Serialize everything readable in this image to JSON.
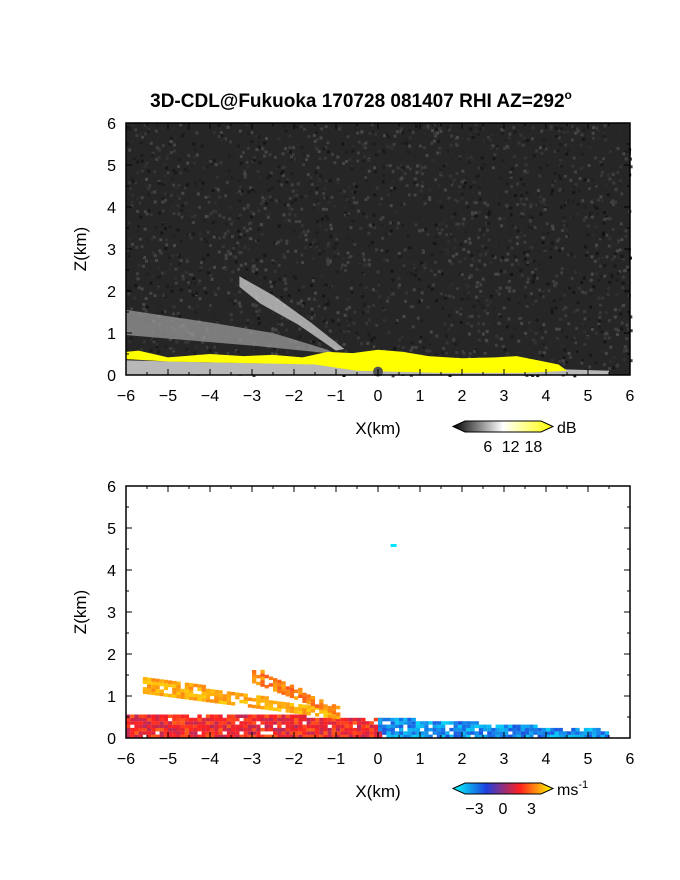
{
  "title": "3D-CDL@Fukuoka 170728 081407 RHI AZ=292",
  "title_superscript": "o",
  "chart_data": [
    {
      "type": "heatmap",
      "panel": "snr",
      "xlabel": "X(km)",
      "ylabel": "Z(km)",
      "xlim": [
        -6,
        6
      ],
      "ylim": [
        0,
        6
      ],
      "xticks": [
        "-6",
        "-5",
        "-4",
        "-3",
        "-2",
        "-1",
        "0",
        "1",
        "2",
        "3",
        "4",
        "5",
        "6"
      ],
      "yticks": [
        "0",
        "1",
        "2",
        "3",
        "4",
        "5",
        "6"
      ],
      "background": "noise (dark grey)",
      "colorbar": {
        "unit": "dB",
        "ticks": [
          "6",
          "12",
          "18"
        ],
        "range": [
          0,
          20
        ],
        "colors": [
          "#000000",
          "#ffffff",
          "#ffff00"
        ]
      },
      "features": [
        {
          "name": "aerosol layer",
          "x": [
            -6.0,
            4.5
          ],
          "z_top": [
            0.6,
            0.15
          ],
          "value_db": ">18",
          "color": "#ffff00"
        },
        {
          "name": "ground clutter",
          "x": [
            -6.0,
            5.5
          ],
          "z": [
            0,
            0.15
          ],
          "value_db": 10
        },
        {
          "name": "plume upper",
          "x": [
            -3.3,
            -0.8
          ],
          "z": [
            2.3,
            0.6
          ],
          "value_db": 12
        },
        {
          "name": "plume lower",
          "x": [
            -6.0,
            -1.0
          ],
          "z": [
            1.5,
            0.55
          ],
          "value_db": 9
        }
      ]
    },
    {
      "type": "heatmap",
      "panel": "doppler_velocity",
      "xlabel": "X(km)",
      "ylabel": "Z(km)",
      "xlim": [
        -6,
        6
      ],
      "ylim": [
        0,
        6
      ],
      "xticks": [
        "-6",
        "-5",
        "-4",
        "-3",
        "-2",
        "-1",
        "0",
        "1",
        "2",
        "3",
        "4",
        "5",
        "6"
      ],
      "yticks": [
        "0",
        "1",
        "2",
        "3",
        "4",
        "5",
        "6"
      ],
      "colorbar": {
        "unit": "ms",
        "unit_superscript": "-1",
        "ticks": [
          "-3",
          "0",
          "3"
        ],
        "range": [
          -4,
          4
        ],
        "colors": [
          "#00ffff",
          "#1f3fdd",
          "#ff2020",
          "#ffff00"
        ]
      },
      "features": [
        {
          "name": "boundary layer west",
          "x": [
            -6.0,
            0.0
          ],
          "z": [
            0.0,
            0.5
          ],
          "velocity": 1.3
        },
        {
          "name": "boundary layer east",
          "x": [
            0.5,
            5.4
          ],
          "z": [
            0.0,
            0.5
          ],
          "velocity": -2.5
        },
        {
          "name": "plume upper",
          "x": [
            -3.0,
            -0.8
          ],
          "z": [
            1.6,
            0.5
          ],
          "velocity": 2.5
        },
        {
          "name": "plume lower",
          "x": [
            -5.6,
            -1.0
          ],
          "z": [
            1.4,
            0.5
          ],
          "velocity": 3.0
        },
        {
          "name": "isolated point",
          "x": [
            0.35,
            0.35
          ],
          "z": [
            4.6,
            4.6
          ],
          "velocity": -3.5
        }
      ]
    }
  ]
}
